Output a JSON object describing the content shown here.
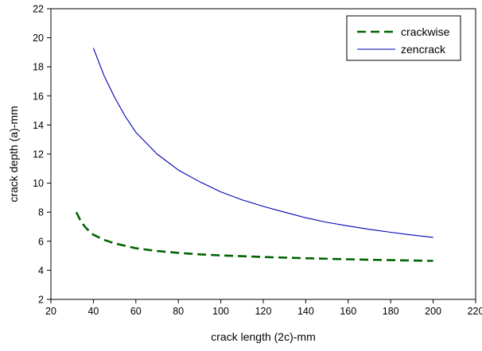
{
  "chart_data": {
    "type": "line",
    "title": "",
    "xlabel": "crack length (2c)-mm",
    "ylabel": "crack depth (a)-mm",
    "xlim": [
      20,
      220
    ],
    "ylim": [
      2,
      22
    ],
    "x_ticks": [
      20,
      40,
      60,
      80,
      100,
      120,
      140,
      160,
      180,
      200,
      220
    ],
    "y_ticks": [
      2,
      4,
      6,
      8,
      10,
      12,
      14,
      16,
      18,
      20,
      22
    ],
    "grid": false,
    "legend_position": "top-right",
    "series": [
      {
        "name": "crackwise",
        "color": "#006400",
        "dash": "dashed",
        "x": [
          32,
          34,
          36,
          38,
          40,
          45,
          50,
          60,
          70,
          80,
          90,
          100,
          120,
          140,
          160,
          180,
          200
        ],
        "y": [
          8.0,
          7.4,
          7.0,
          6.7,
          6.45,
          6.1,
          5.85,
          5.52,
          5.33,
          5.2,
          5.1,
          5.03,
          4.92,
          4.83,
          4.76,
          4.7,
          4.65
        ]
      },
      {
        "name": "zencrack",
        "color": "#0000b4",
        "dash": "solid",
        "x": [
          40,
          45,
          50,
          55,
          60,
          70,
          80,
          90,
          100,
          110,
          120,
          130,
          140,
          150,
          160,
          170,
          180,
          190,
          200
        ],
        "y": [
          19.3,
          17.4,
          15.9,
          14.6,
          13.5,
          12.0,
          10.9,
          10.1,
          9.4,
          8.85,
          8.4,
          8.0,
          7.62,
          7.3,
          7.05,
          6.82,
          6.62,
          6.43,
          6.27
        ]
      }
    ]
  }
}
